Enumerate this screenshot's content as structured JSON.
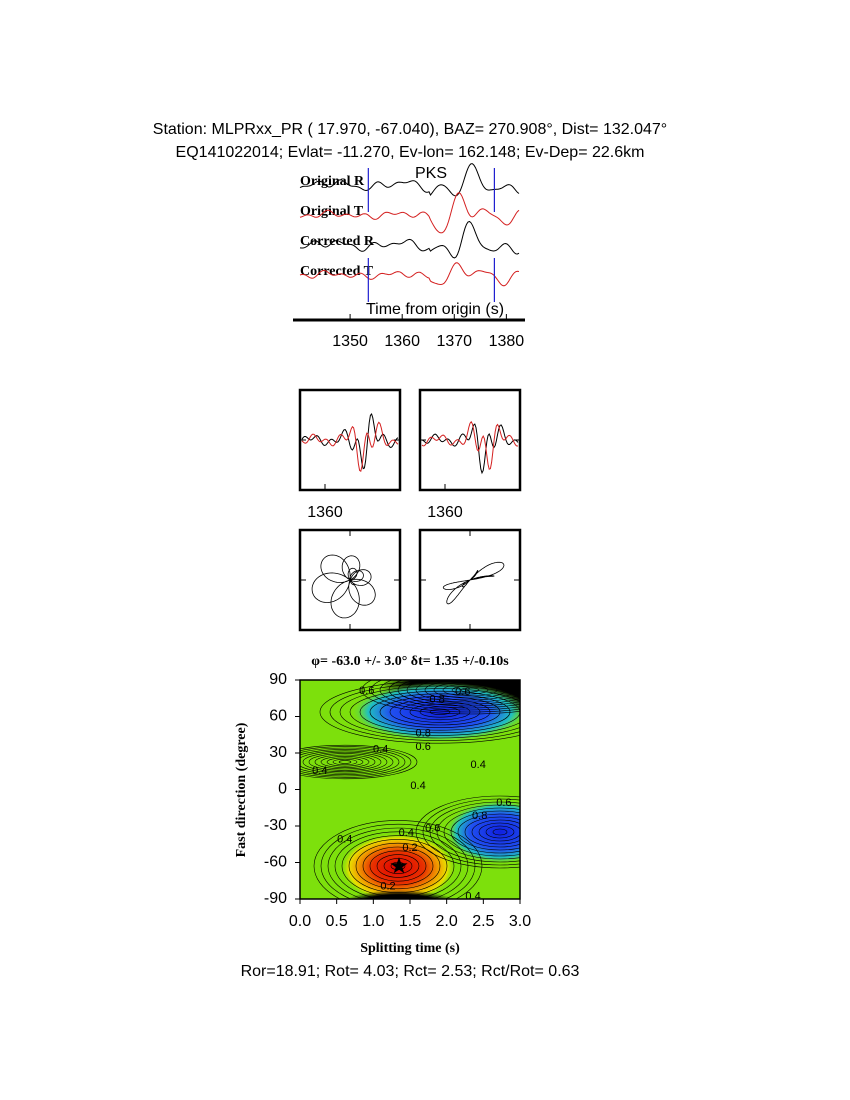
{
  "header": {
    "station": "Station: MLPRxx_PR (  17.970,  -67.040), BAZ=  270.908°, Dist=  132.047°",
    "event": "EQ141022014; Evlat= -11.270, Ev-lon= 162.148; Ev-Dep= 22.6km"
  },
  "chart_data": [
    {
      "type": "waveform",
      "annotation": "PKS",
      "xlabel": "Time from origin (s)",
      "series": [
        {
          "name": "Original R",
          "color": "#000000"
        },
        {
          "name": "Original T",
          "color": "#d42020"
        },
        {
          "name": "Corrected R",
          "color": "#000000"
        },
        {
          "name": "Corrected T",
          "color": "#d42020"
        }
      ],
      "window": [
        1353.5,
        1377.7
      ],
      "window_color": "#2020d0",
      "xlim": [
        1340,
        1383
      ],
      "xticks": [
        1350,
        1360,
        1370,
        1380
      ]
    },
    {
      "type": "particle-motion",
      "xlim": [
        1355,
        1375
      ],
      "xticks": [
        1360
      ]
    },
    {
      "type": "contour",
      "title": "φ= -63.0 +/- 3.0° δt= 1.35 +/-0.10s",
      "xlabel": "Splitting time (s)",
      "ylabel": "Fast direction (degree)",
      "xlim": [
        0,
        3
      ],
      "ylim": [
        -90,
        90
      ],
      "xticks": [
        {
          "value": 0,
          "label": "0.0"
        },
        {
          "value": 0.5,
          "label": "0.5"
        },
        {
          "value": 1,
          "label": "1.0"
        },
        {
          "value": 1.5,
          "label": "1.5"
        },
        {
          "value": 2,
          "label": "2.0"
        },
        {
          "value": 2.5,
          "label": "2.5"
        },
        {
          "value": 3,
          "label": "3.0"
        }
      ],
      "yticks": [
        -90,
        -60,
        -30,
        0,
        30,
        60,
        90
      ],
      "best": {
        "dt": 1.35,
        "phi": -63
      },
      "contour_labels": [
        {
          "dt": 0.91,
          "phi": 81,
          "level": 0.6
        },
        {
          "dt": 1.87,
          "phi": 74,
          "level": 0.8
        },
        {
          "dt": 2.22,
          "phi": 80,
          "level": 0.6
        },
        {
          "dt": 1.68,
          "phi": 46,
          "level": 0.8
        },
        {
          "dt": 1.68,
          "phi": 35,
          "level": 0.6
        },
        {
          "dt": 1.1,
          "phi": 33,
          "level": 0.4
        },
        {
          "dt": 0.27,
          "phi": 15,
          "level": 0.4
        },
        {
          "dt": 1.61,
          "phi": 3,
          "level": 0.4
        },
        {
          "dt": 2.43,
          "phi": 20,
          "level": 0.4
        },
        {
          "dt": 2.78,
          "phi": -11,
          "level": 0.6
        },
        {
          "dt": 2.45,
          "phi": -22,
          "level": 0.8
        },
        {
          "dt": 1.45,
          "phi": -36,
          "level": 0.4
        },
        {
          "dt": 1.81,
          "phi": -32,
          "level": 0.6
        },
        {
          "dt": 1.5,
          "phi": -48,
          "level": 0.2
        },
        {
          "dt": 0.61,
          "phi": -41,
          "level": 0.4
        },
        {
          "dt": 1.2,
          "phi": -80,
          "level": 0.2
        },
        {
          "dt": 2.36,
          "phi": -88,
          "level": 0.4
        }
      ]
    }
  ],
  "footer": "Ror=18.91; Rot= 4.03; Rct= 2.53; Rct/Rot= 0.63"
}
